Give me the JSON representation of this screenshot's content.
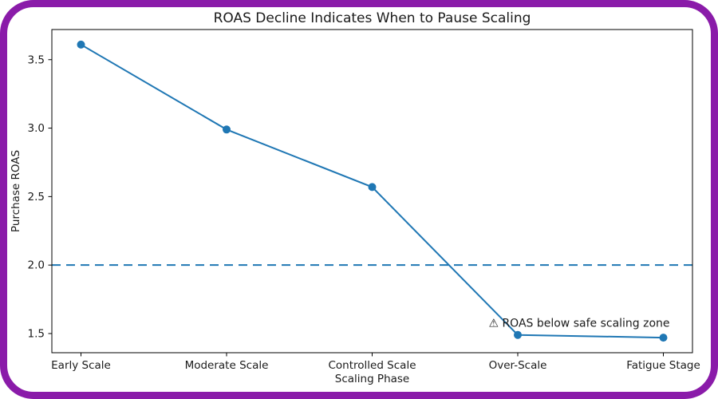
{
  "chart_data": {
    "type": "line",
    "title": "ROAS Decline Indicates When to Pause Scaling",
    "xlabel": "Scaling Phase",
    "ylabel": "Purchase ROAS",
    "categories": [
      "Early Scale",
      "Moderate Scale",
      "Controlled Scale",
      "Over-Scale",
      "Fatigue Stage"
    ],
    "series": [
      {
        "name": "Purchase ROAS",
        "values": [
          3.61,
          2.99,
          2.57,
          1.49,
          1.47
        ]
      }
    ],
    "threshold_line": {
      "value": 2.0,
      "style": "dashed"
    },
    "annotation": {
      "text": "⚠ ROAS below safe scaling zone",
      "anchor_category": "Over-Scale"
    },
    "yticks": [
      "1.5",
      "2.0",
      "2.5",
      "3.0",
      "3.5"
    ],
    "ytick_values": [
      1.5,
      2.0,
      2.5,
      3.0,
      3.5
    ],
    "ylim": [
      1.36,
      3.72
    ],
    "grid": false,
    "legend": "none",
    "colors": {
      "line": "#1f77b4",
      "marker": "#1f77b4",
      "threshold": "#1f77b4",
      "spine": "#000000",
      "text": "#1a1a1a",
      "frame_border": "#8a1ba9",
      "background": "#ffffff"
    }
  }
}
